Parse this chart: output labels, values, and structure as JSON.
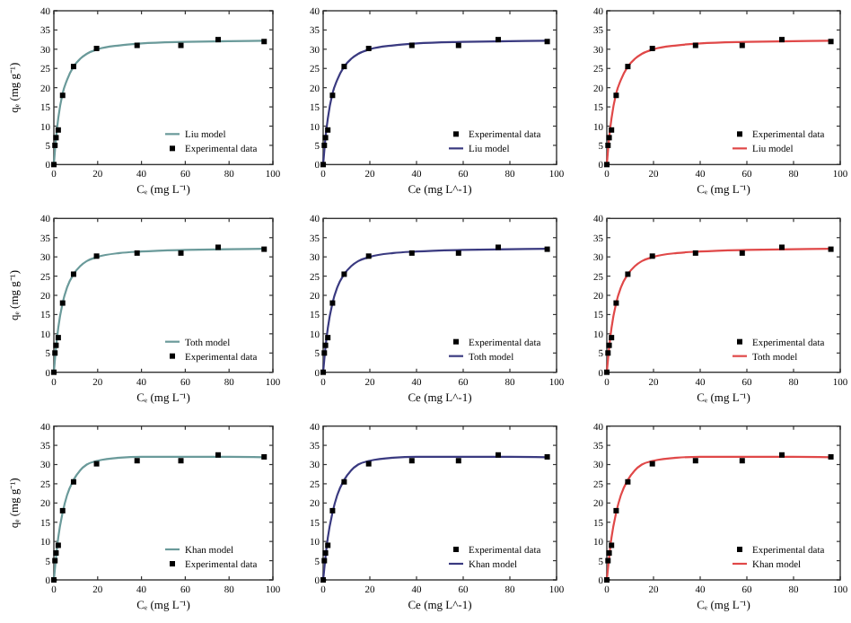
{
  "chart_data": [
    {
      "type": "line",
      "xlabel": "Cₑ (mg L⁻¹)",
      "ylabel": "qₑ (mg g⁻¹)",
      "xlim": [
        0,
        100
      ],
      "ylim": [
        0,
        40
      ],
      "xticks": [
        0,
        20,
        40,
        60,
        80,
        100
      ],
      "yticks": [
        0,
        5,
        10,
        15,
        20,
        25,
        30,
        35,
        40
      ],
      "legend": "bottom right",
      "grid": false,
      "series": [
        {
          "name": "Liu model",
          "color": "#6a9a9a",
          "x": [
            0,
            1,
            2,
            4,
            6,
            9,
            12,
            15,
            20,
            30,
            40,
            60,
            80,
            96
          ],
          "values": [
            0,
            7,
            12,
            18.5,
            22,
            25.5,
            27.5,
            28.8,
            30,
            31,
            31.5,
            31.9,
            32.1,
            32.2
          ]
        },
        {
          "name": "Experimental data",
          "type": "scatter",
          "marker": "square",
          "color": "#000000",
          "x": [
            0,
            0.5,
            1,
            2,
            4,
            9,
            19.5,
            38,
            58,
            75,
            96
          ],
          "values": [
            0,
            5,
            7,
            9,
            18,
            25.5,
            30.2,
            31,
            31,
            32.5,
            32
          ]
        }
      ]
    },
    {
      "type": "line",
      "xlabel": "Ce (mg L^-1)",
      "xlim": [
        0,
        100
      ],
      "ylim": [
        0,
        40
      ],
      "xticks": [
        0,
        20,
        40,
        60,
        80,
        100
      ],
      "yticks": [
        0,
        5,
        10,
        15,
        20,
        25,
        30,
        35,
        40
      ],
      "legend": "bottom right",
      "grid": false,
      "series": [
        {
          "name": "Experimental data",
          "type": "scatter",
          "marker": "square",
          "color": "#000000",
          "x": [
            0,
            0.5,
            1,
            2,
            4,
            9,
            19.5,
            38,
            58,
            75,
            96
          ],
          "values": [
            0,
            5,
            7,
            9,
            18,
            25.5,
            30.2,
            31,
            31,
            32.5,
            32
          ]
        },
        {
          "name": "Liu model",
          "color": "#3a3a80",
          "x": [
            0,
            1,
            2,
            4,
            6,
            9,
            12,
            15,
            20,
            30,
            40,
            60,
            80,
            96
          ],
          "values": [
            0,
            7,
            12,
            18.5,
            22,
            25.5,
            27.5,
            28.8,
            30,
            31,
            31.5,
            31.9,
            32.1,
            32.2
          ]
        }
      ]
    },
    {
      "type": "line",
      "xlabel": "Cₑ (mg L⁻¹)",
      "xlim": [
        0,
        100
      ],
      "ylim": [
        0,
        40
      ],
      "xticks": [
        0,
        20,
        40,
        60,
        80,
        100
      ],
      "yticks": [
        0,
        5,
        10,
        15,
        20,
        25,
        30,
        35,
        40
      ],
      "legend": "bottom right",
      "grid": false,
      "series": [
        {
          "name": "Experimental data",
          "type": "scatter",
          "marker": "square",
          "color": "#000000",
          "x": [
            0,
            0.5,
            1,
            2,
            4,
            9,
            19.5,
            38,
            58,
            75,
            96
          ],
          "values": [
            0,
            5,
            7,
            9,
            18,
            25.5,
            30.2,
            31,
            31,
            32.5,
            32
          ]
        },
        {
          "name": "Liu model",
          "color": "#e04848",
          "x": [
            0,
            1,
            2,
            4,
            6,
            9,
            12,
            15,
            20,
            30,
            40,
            60,
            80,
            96
          ],
          "values": [
            0,
            7,
            12,
            18.5,
            22,
            25.5,
            27.5,
            28.8,
            30,
            31,
            31.5,
            31.9,
            32.1,
            32.2
          ]
        }
      ]
    },
    {
      "type": "line",
      "xlabel": "Cₑ (mg L⁻¹)",
      "ylabel": "qₑ (mg g⁻¹)",
      "xlim": [
        0,
        100
      ],
      "ylim": [
        0,
        40
      ],
      "xticks": [
        0,
        20,
        40,
        60,
        80,
        100
      ],
      "yticks": [
        0,
        5,
        10,
        15,
        20,
        25,
        30,
        35,
        40
      ],
      "legend": "bottom right",
      "grid": false,
      "series": [
        {
          "name": "Toth model",
          "color": "#6a9a9a",
          "x": [
            0,
            1,
            2,
            4,
            6,
            9,
            12,
            15,
            20,
            30,
            40,
            60,
            80,
            96
          ],
          "values": [
            0,
            6.5,
            11.5,
            18,
            22,
            25.5,
            27.6,
            28.9,
            30,
            31,
            31.4,
            31.8,
            32,
            32.1
          ]
        },
        {
          "name": "Experimental data",
          "type": "scatter",
          "marker": "square",
          "color": "#000000",
          "x": [
            0,
            0.5,
            1,
            2,
            4,
            9,
            19.5,
            38,
            58,
            75,
            96
          ],
          "values": [
            0,
            5,
            7,
            9,
            18,
            25.5,
            30.2,
            31,
            31,
            32.5,
            32
          ]
        }
      ]
    },
    {
      "type": "line",
      "xlabel": "Ce (mg L^-1)",
      "xlim": [
        0,
        100
      ],
      "ylim": [
        0,
        40
      ],
      "xticks": [
        0,
        20,
        40,
        60,
        80,
        100
      ],
      "yticks": [
        0,
        5,
        10,
        15,
        20,
        25,
        30,
        35,
        40
      ],
      "legend": "bottom right",
      "grid": false,
      "series": [
        {
          "name": "Experimental data",
          "type": "scatter",
          "marker": "square",
          "color": "#000000",
          "x": [
            0,
            0.5,
            1,
            2,
            4,
            9,
            19.5,
            38,
            58,
            75,
            96
          ],
          "values": [
            0,
            5,
            7,
            9,
            18,
            25.5,
            30.2,
            31,
            31,
            32.5,
            32
          ]
        },
        {
          "name": "Toth model",
          "color": "#3a3a80",
          "x": [
            0,
            1,
            2,
            4,
            6,
            9,
            12,
            15,
            20,
            30,
            40,
            60,
            80,
            96
          ],
          "values": [
            0,
            6.5,
            11.5,
            18,
            22,
            25.5,
            27.6,
            28.9,
            30,
            31,
            31.4,
            31.8,
            32,
            32.1
          ]
        }
      ]
    },
    {
      "type": "line",
      "xlabel": "Cₑ (mg L⁻¹)",
      "xlim": [
        0,
        100
      ],
      "ylim": [
        0,
        40
      ],
      "xticks": [
        0,
        20,
        40,
        60,
        80,
        100
      ],
      "yticks": [
        0,
        5,
        10,
        15,
        20,
        25,
        30,
        35,
        40
      ],
      "legend": "bottom right",
      "grid": false,
      "series": [
        {
          "name": "Experimental data",
          "type": "scatter",
          "marker": "square",
          "color": "#000000",
          "x": [
            0,
            0.5,
            1,
            2,
            4,
            9,
            19.5,
            38,
            58,
            75,
            96
          ],
          "values": [
            0,
            5,
            7,
            9,
            18,
            25.5,
            30.2,
            31,
            31,
            32.5,
            32
          ]
        },
        {
          "name": "Toth model",
          "color": "#e04848",
          "x": [
            0,
            1,
            2,
            4,
            6,
            9,
            12,
            15,
            20,
            30,
            40,
            60,
            80,
            96
          ],
          "values": [
            0,
            6.5,
            11.5,
            18,
            22,
            25.5,
            27.6,
            28.9,
            30,
            31,
            31.4,
            31.8,
            32,
            32.1
          ]
        }
      ]
    },
    {
      "type": "line",
      "xlabel": "Cₑ (mg L⁻¹)",
      "ylabel": "qₑ (mg g⁻¹)",
      "xlim": [
        0,
        100
      ],
      "ylim": [
        0,
        40
      ],
      "xticks": [
        0,
        20,
        40,
        60,
        80,
        100
      ],
      "yticks": [
        0,
        5,
        10,
        15,
        20,
        25,
        30,
        35,
        40
      ],
      "legend": "bottom right",
      "grid": false,
      "series": [
        {
          "name": "Khan model",
          "color": "#6a9a9a",
          "x": [
            0,
            1,
            2,
            4,
            6,
            9,
            12,
            15,
            20,
            30,
            40,
            60,
            80,
            96
          ],
          "values": [
            0,
            6,
            11,
            17.5,
            22,
            26,
            28.5,
            30,
            31,
            31.8,
            32,
            32,
            32,
            31.9
          ]
        },
        {
          "name": "Experimental data",
          "type": "scatter",
          "marker": "square",
          "color": "#000000",
          "x": [
            0,
            0.5,
            1,
            2,
            4,
            9,
            19.5,
            38,
            58,
            75,
            96
          ],
          "values": [
            0,
            5,
            7,
            9,
            18,
            25.5,
            30.2,
            31,
            31,
            32.5,
            32
          ]
        }
      ]
    },
    {
      "type": "line",
      "xlabel": "Ce (mg L^-1)",
      "xlim": [
        0,
        100
      ],
      "ylim": [
        0,
        40
      ],
      "xticks": [
        0,
        20,
        40,
        60,
        80,
        100
      ],
      "yticks": [
        0,
        5,
        10,
        15,
        20,
        25,
        30,
        35,
        40
      ],
      "legend": "bottom right",
      "grid": false,
      "series": [
        {
          "name": "Experimental data",
          "type": "scatter",
          "marker": "square",
          "color": "#000000",
          "x": [
            0,
            0.5,
            1,
            2,
            4,
            9,
            19.5,
            38,
            58,
            75,
            96
          ],
          "values": [
            0,
            5,
            7,
            9,
            18,
            25.5,
            30.2,
            31,
            31,
            32.5,
            32
          ]
        },
        {
          "name": "Khan model",
          "color": "#3a3a80",
          "x": [
            0,
            1,
            2,
            4,
            6,
            9,
            12,
            15,
            20,
            30,
            40,
            60,
            80,
            96
          ],
          "values": [
            0,
            6,
            11,
            17.5,
            22,
            26,
            28.5,
            30,
            31,
            31.8,
            32,
            32,
            32,
            31.9
          ]
        }
      ]
    },
    {
      "type": "line",
      "xlabel": "Cₑ (mg L⁻¹)",
      "xlim": [
        0,
        100
      ],
      "ylim": [
        0,
        40
      ],
      "xticks": [
        0,
        20,
        40,
        60,
        80,
        100
      ],
      "yticks": [
        0,
        5,
        10,
        15,
        20,
        25,
        30,
        35,
        40
      ],
      "legend": "bottom right",
      "grid": false,
      "series": [
        {
          "name": "Experimental data",
          "type": "scatter",
          "marker": "square",
          "color": "#000000",
          "x": [
            0,
            0.5,
            1,
            2,
            4,
            9,
            19.5,
            38,
            58,
            75,
            96
          ],
          "values": [
            0,
            5,
            7,
            9,
            18,
            25.5,
            30.2,
            31,
            31,
            32.5,
            32
          ]
        },
        {
          "name": "Khan model",
          "color": "#e04848",
          "x": [
            0,
            1,
            2,
            4,
            6,
            9,
            12,
            15,
            20,
            30,
            40,
            60,
            80,
            96
          ],
          "values": [
            0,
            6,
            11,
            17.5,
            22,
            26,
            28.5,
            30,
            31,
            31.8,
            32,
            32,
            32,
            31.9
          ]
        }
      ]
    }
  ]
}
